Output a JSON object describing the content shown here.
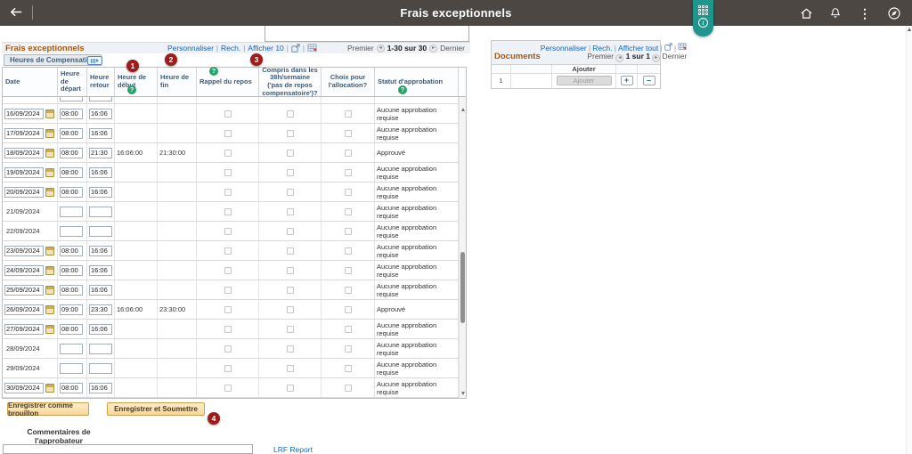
{
  "colors": {
    "header_bg": "#4c4743",
    "teal_accent": "#1e968d",
    "grid_title_orange": "#a55a11",
    "link_blue": "#1166bb",
    "annotation_red": "#9d1d1d",
    "help_green": "#26a368",
    "button_tan": "#f6d79c"
  },
  "icons": {
    "back": "back-arrow",
    "home": "home",
    "bell": "notifications",
    "kebab": "⋮",
    "navbar": "compass",
    "sep": "|",
    "prev": "◂",
    "next": "▸",
    "info": "i",
    "plus": "+",
    "minus": "–"
  },
  "app_header": {
    "title": "Frais exceptionnels"
  },
  "grid": {
    "title": "Frais exceptionnels",
    "toolbar": {
      "personnaliser": "Personnaliser",
      "rech": "Rech.",
      "afficher": "Afficher 10",
      "premier": "Premier",
      "range": "1-30 sur 30",
      "dernier": "Dernier"
    },
    "tab_label": "Heures de Compensation",
    "columns": [
      {
        "label": "Date"
      },
      {
        "label": "Heure de départ"
      },
      {
        "label": "Heure retour"
      },
      {
        "label": "Heure de début",
        "help": true
      },
      {
        "label": "Heure de fin"
      },
      {
        "label": "Rappel du repos",
        "help": true
      },
      {
        "label": "Compris dans les 38h/semaine ('pas de repos compensatoire')?"
      },
      {
        "label": "Choix pour l'allocation?"
      },
      {
        "label": "Statut d'approbation",
        "help": true
      }
    ],
    "rows": [
      {
        "partial": true,
        "dep": "",
        "ret": ""
      },
      {
        "date": "16/09/2024",
        "date_input": true,
        "dep": "08:00",
        "ret": "16:06",
        "debut": "",
        "fin": "",
        "statut": "Aucune approbation requise"
      },
      {
        "date": "17/09/2024",
        "date_input": true,
        "dep": "08:00",
        "ret": "16:06",
        "debut": "",
        "fin": "",
        "statut": "Aucune approbation requise"
      },
      {
        "date": "18/09/2024",
        "date_input": true,
        "dep": "08:00",
        "ret": "21:30",
        "debut": "16:06:00",
        "fin": "21:30:00",
        "statut": "Approuvé"
      },
      {
        "date": "19/09/2024",
        "date_input": true,
        "dep": "08:00",
        "ret": "16:06",
        "debut": "",
        "fin": "",
        "statut": "Aucune approbation requise"
      },
      {
        "date": "20/09/2024",
        "date_input": true,
        "dep": "08:00",
        "ret": "16:06",
        "debut": "",
        "fin": "",
        "statut": "Aucune approbation requise"
      },
      {
        "date": "21/09/2024",
        "date_input": false,
        "dep": "",
        "ret": "",
        "debut": "",
        "fin": "",
        "statut": "Aucune approbation requise"
      },
      {
        "date": "22/09/2024",
        "date_input": false,
        "dep": "",
        "ret": "",
        "debut": "",
        "fin": "",
        "statut": "Aucune approbation requise"
      },
      {
        "date": "23/09/2024",
        "date_input": true,
        "dep": "08:00",
        "ret": "16:06",
        "debut": "",
        "fin": "",
        "statut": "Aucune approbation requise"
      },
      {
        "date": "24/09/2024",
        "date_input": true,
        "dep": "08:00",
        "ret": "16:06",
        "debut": "",
        "fin": "",
        "statut": "Aucune approbation requise"
      },
      {
        "date": "25/09/2024",
        "date_input": true,
        "dep": "08:00",
        "ret": "16:06",
        "debut": "",
        "fin": "",
        "statut": "Aucune approbation requise"
      },
      {
        "date": "26/09/2024",
        "date_input": true,
        "dep": "09:00",
        "ret": "23:30",
        "debut": "16:06:00",
        "fin": "23:30:00",
        "statut": "Approuvé"
      },
      {
        "date": "27/09/2024",
        "date_input": true,
        "dep": "08:00",
        "ret": "16:06",
        "debut": "",
        "fin": "",
        "statut": "Aucune approbation requise"
      },
      {
        "date": "28/09/2024",
        "date_input": false,
        "dep": "",
        "ret": "",
        "debut": "",
        "fin": "",
        "statut": "Aucune approbation requise"
      },
      {
        "date": "29/09/2024",
        "date_input": false,
        "dep": "",
        "ret": "",
        "debut": "",
        "fin": "",
        "statut": "Aucune approbation requise"
      },
      {
        "date": "30/09/2024",
        "date_input": true,
        "dep": "08:00",
        "ret": "16:06",
        "debut": "",
        "fin": "",
        "statut": "Aucune approbation requise"
      }
    ]
  },
  "footer": {
    "save_draft": "Enregistrer comme brouillon",
    "save_submit": "Enregistrer et Soumettre",
    "comments_label": "Commentaires de l'approbateur",
    "comments_value": "",
    "lrf_link": "LRF Report"
  },
  "documents": {
    "title": "Documents",
    "toolbar": {
      "personnaliser": "Personnaliser",
      "rech": "Rech.",
      "afficher": "Afficher tout",
      "premier": "Premier",
      "range": "1 sur 1",
      "dernier": "Dernier"
    },
    "header_ajouter": "Ajouter",
    "row_num": "1",
    "row_button": "Ajouter"
  },
  "annotations": {
    "n1": "1",
    "n2": "2",
    "n3": "3",
    "n4": "4"
  }
}
